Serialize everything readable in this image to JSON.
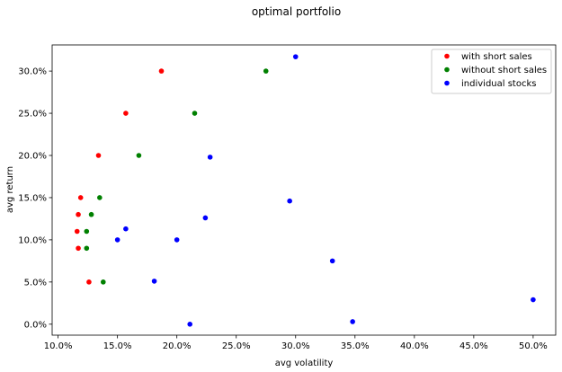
{
  "chart_data": {
    "type": "scatter",
    "title": "optimal portfolio",
    "xlabel": "avg volatility",
    "ylabel": "avg return",
    "xlim": [
      0.095,
      0.519
    ],
    "ylim": [
      -0.013,
      0.331
    ],
    "xticks": [
      0.1,
      0.15,
      0.2,
      0.25,
      0.3,
      0.35,
      0.4,
      0.45,
      0.5
    ],
    "xtick_labels": [
      "10.0%",
      "15.0%",
      "20.0%",
      "25.0%",
      "30.0%",
      "35.0%",
      "40.0%",
      "45.0%",
      "50.0%"
    ],
    "yticks": [
      0.0,
      0.05,
      0.1,
      0.15,
      0.2,
      0.25,
      0.3
    ],
    "ytick_labels": [
      "0.0%",
      "5.0%",
      "10.0%",
      "15.0%",
      "20.0%",
      "25.0%",
      "30.0%"
    ],
    "grid": false,
    "legend_position": "top-right",
    "series": [
      {
        "name": "with short sales",
        "color": "#ff0000",
        "points": [
          [
            0.126,
            0.05
          ],
          [
            0.117,
            0.09
          ],
          [
            0.116,
            0.11
          ],
          [
            0.117,
            0.13
          ],
          [
            0.119,
            0.15
          ],
          [
            0.134,
            0.2
          ],
          [
            0.157,
            0.25
          ],
          [
            0.187,
            0.3
          ]
        ]
      },
      {
        "name": "without short sales",
        "color": "#008000",
        "points": [
          [
            0.138,
            0.05
          ],
          [
            0.124,
            0.09
          ],
          [
            0.124,
            0.11
          ],
          [
            0.128,
            0.13
          ],
          [
            0.135,
            0.15
          ],
          [
            0.168,
            0.2
          ],
          [
            0.215,
            0.25
          ],
          [
            0.275,
            0.3
          ]
        ]
      },
      {
        "name": "individual stocks",
        "color": "#0000ff",
        "points": [
          [
            0.3,
            0.317
          ],
          [
            0.228,
            0.198
          ],
          [
            0.295,
            0.146
          ],
          [
            0.224,
            0.126
          ],
          [
            0.157,
            0.113
          ],
          [
            0.15,
            0.1
          ],
          [
            0.2,
            0.1
          ],
          [
            0.181,
            0.051
          ],
          [
            0.331,
            0.075
          ],
          [
            0.211,
            0.0
          ],
          [
            0.348,
            0.003
          ],
          [
            0.5,
            0.029
          ]
        ]
      }
    ]
  }
}
